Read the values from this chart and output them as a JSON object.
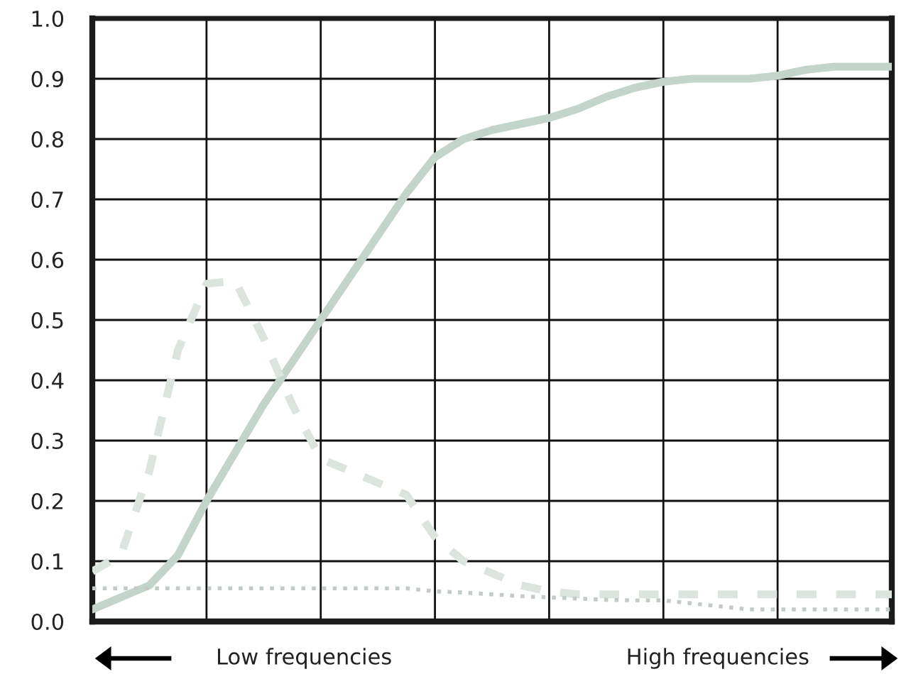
{
  "chart_data": {
    "type": "line",
    "categories": [
      null,
      null,
      null,
      null,
      null,
      null,
      null,
      null,
      null,
      null,
      null,
      null,
      null,
      null,
      null,
      null,
      null,
      null,
      null,
      null,
      null,
      null,
      null,
      null,
      null,
      null,
      null,
      null,
      null
    ],
    "series": [
      {
        "color": "#c3d4ca",
        "line_style": "solid",
        "values": [
          0.02,
          0.04,
          0.06,
          0.11,
          0.2,
          0.28,
          0.36,
          0.43,
          0.5,
          0.57,
          0.64,
          0.71,
          0.77,
          0.8,
          0.815,
          0.825,
          0.835,
          0.85,
          0.87,
          0.885,
          0.895,
          0.9,
          0.9,
          0.9,
          0.905,
          0.915,
          0.92,
          0.92,
          0.92
        ]
      },
      {
        "color": "#dbe5de",
        "line_style": "dashed",
        "values": [
          0.083,
          0.11,
          0.25,
          0.45,
          0.56,
          0.565,
          0.47,
          0.36,
          0.27,
          0.25,
          0.23,
          0.21,
          0.14,
          0.1,
          0.08,
          0.06,
          0.05,
          0.045,
          0.045,
          0.045,
          0.045,
          0.045,
          0.045,
          0.045,
          0.045,
          0.045,
          0.045,
          0.045,
          0.045
        ]
      },
      {
        "color": "#c2cbc6",
        "line_style": "dotted",
        "values": [
          0.055,
          0.055,
          0.055,
          0.055,
          0.055,
          0.055,
          0.055,
          0.055,
          0.055,
          0.055,
          0.055,
          0.055,
          0.05,
          0.048,
          0.045,
          0.042,
          0.04,
          0.038,
          0.036,
          0.035,
          0.035,
          0.03,
          0.025,
          0.02,
          0.02,
          0.02,
          0.02,
          0.02,
          0.02
        ]
      }
    ],
    "ylim": [
      0,
      1
    ],
    "yticks": [
      {
        "value": 0,
        "label": "0.0"
      },
      0.1,
      0.2,
      0.3,
      0.4,
      0.5,
      0.6,
      0.7,
      0.8,
      0.9,
      {
        "value": 1,
        "label": "1.0"
      }
    ],
    "tick_labels": "y",
    "grid": true,
    "annotations": [
      "Low frequencies",
      "High frequencies"
    ]
  }
}
